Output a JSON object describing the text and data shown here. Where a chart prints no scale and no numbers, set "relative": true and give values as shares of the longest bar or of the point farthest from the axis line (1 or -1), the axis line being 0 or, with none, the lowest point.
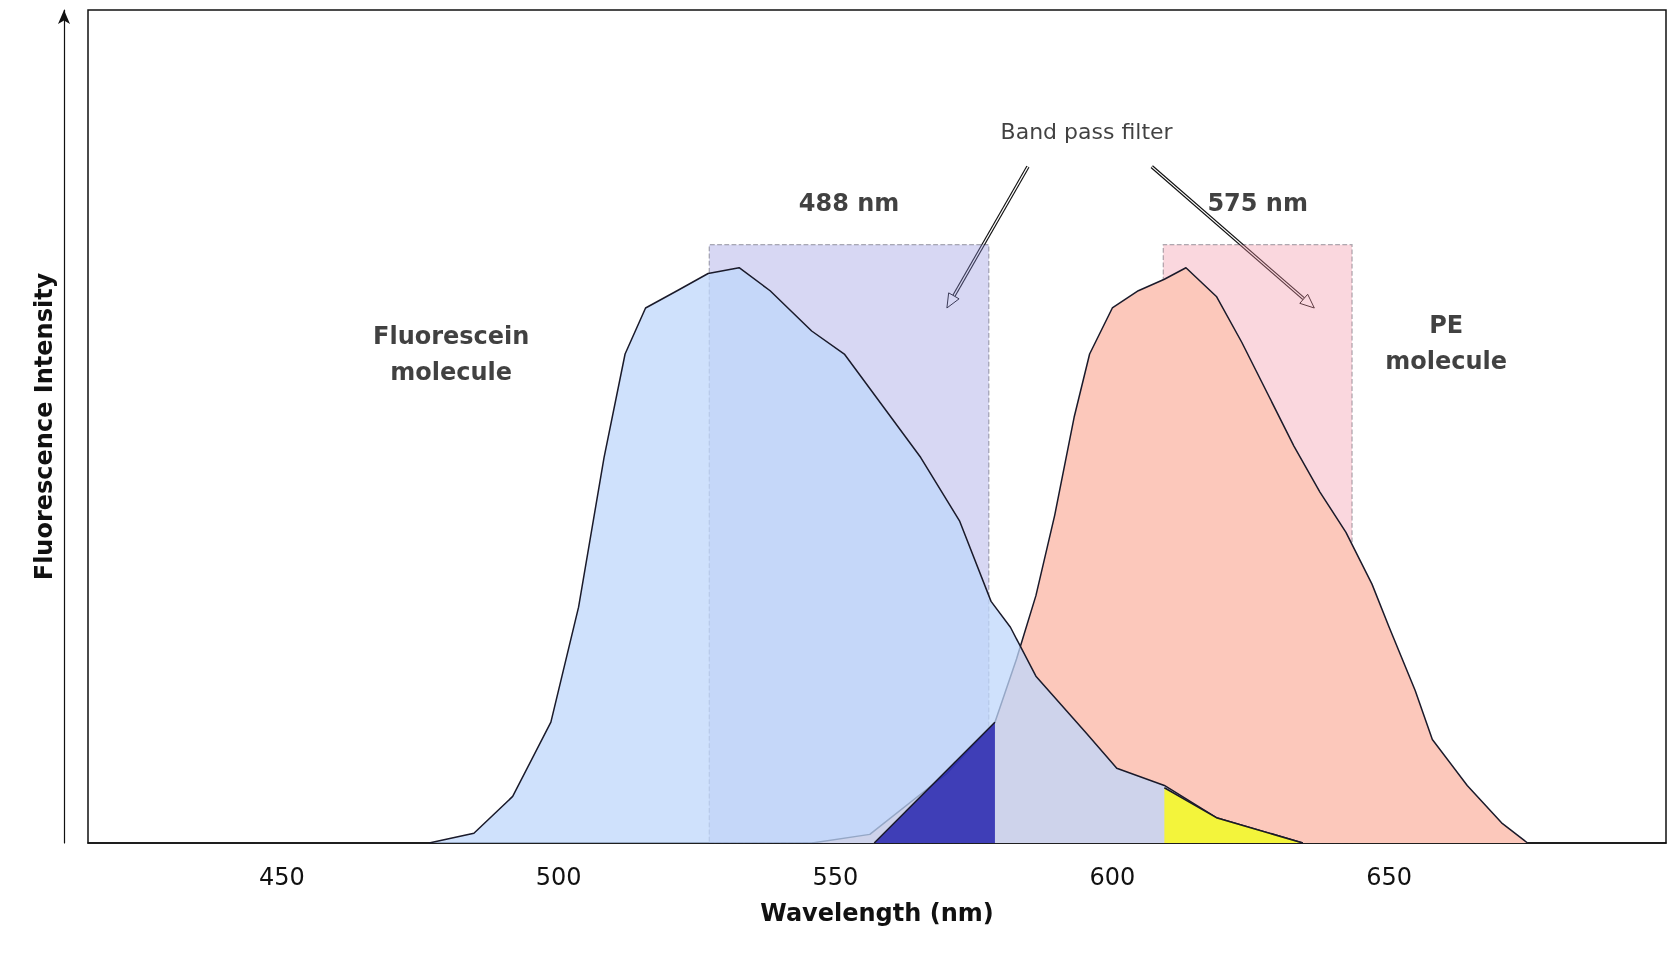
{
  "chart_data": {
    "type": "area",
    "relative": true,
    "xlabel": "Wavelength (nm)",
    "ylabel": "Fluorescence Intensity",
    "xlim": [
      415,
      700
    ],
    "xticks": [
      450,
      500,
      550,
      600,
      650
    ],
    "grid": false,
    "series": [
      {
        "color": "#fcc8bb",
        "x": [
          545.8,
          556.2,
          570.0,
          578.8,
          582.7,
          586.2,
          589.6,
          593.1,
          595.9,
          600.0,
          604.7,
          609.4,
          613.3,
          618.8,
          623.4,
          628.1,
          632.8,
          637.5,
          642.2,
          646.9,
          650.0,
          654.7,
          657.8,
          664.1,
          670.3,
          675.0
        ],
        "values": [
          0,
          0.015,
          0.12,
          0.21,
          0.32,
          0.43,
          0.57,
          0.74,
          0.85,
          0.93,
          0.96,
          0.98,
          1.0,
          0.95,
          0.87,
          0.78,
          0.69,
          0.61,
          0.54,
          0.45,
          0.375,
          0.265,
          0.18,
          0.1,
          0.035,
          0
        ]
      },
      {
        "color": "#bfd7fb",
        "x": [
          476.6,
          484.7,
          491.7,
          498.6,
          503.6,
          508.2,
          512.0,
          515.7,
          521.4,
          527.0,
          532.6,
          538.2,
          545.7,
          551.6,
          558.5,
          565.4,
          572.4,
          578.1,
          581.6,
          586.2,
          595.4,
          600.8,
          609.4,
          618.8,
          634.4
        ],
        "values": [
          0,
          0.017,
          0.081,
          0.21,
          0.41,
          0.67,
          0.85,
          0.93,
          0.96,
          0.99,
          1.0,
          0.96,
          0.89,
          0.85,
          0.76,
          0.67,
          0.56,
          0.42,
          0.375,
          0.29,
          0.19,
          0.13,
          0.1,
          0.044,
          0
        ]
      },
      {
        "color": "#0f0ca6",
        "x": [
          557.0,
          578.8
        ],
        "values": [
          0,
          0.21
        ]
      },
      {
        "color": "#ffff00",
        "x": [
          609.4,
          618.8,
          634.4
        ],
        "values": [
          0.096,
          0.044,
          0
        ]
      }
    ],
    "bands": [
      {
        "axis": "x",
        "from": 527.2,
        "to": 577.7,
        "color": "#8c8cdc"
      },
      {
        "axis": "x",
        "from": 609.2,
        "to": 643.3,
        "color": "#f08ca0"
      }
    ],
    "annotations": [
      "488 nm",
      "575 nm",
      "Band pass filter",
      "Fluorescein\nmolecule",
      "PE\nmolecule"
    ]
  }
}
